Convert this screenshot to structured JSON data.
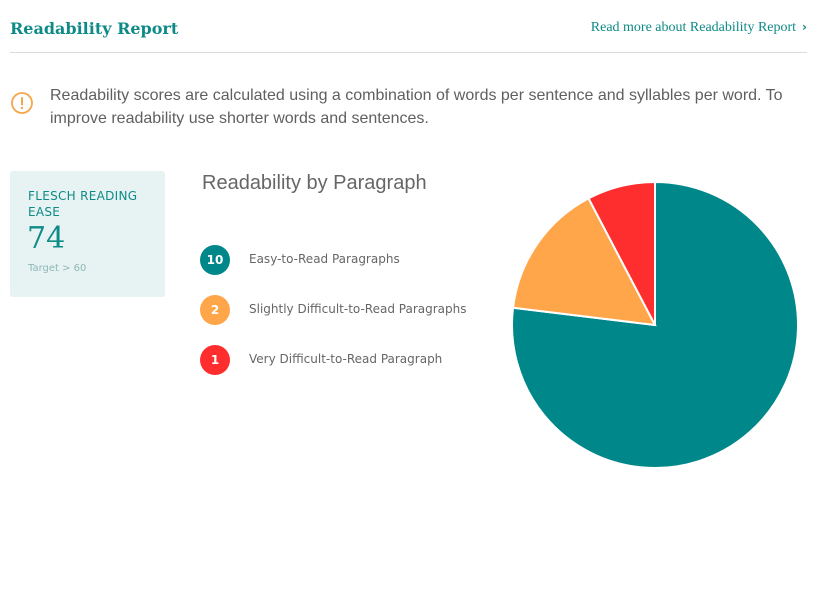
{
  "header": {
    "title": "Readability Report",
    "read_more": "Read more about Readability Report",
    "read_more_icon": "chevron-right-icon"
  },
  "notice": {
    "icon": "info-icon",
    "text": "Readability scores are calculated using a combination of words per sentence and syllables per word. To improve readability use shorter words and sentences."
  },
  "kpi": {
    "label": "FLESCH READING EASE",
    "value": "74",
    "target": "Target > 60"
  },
  "chart_data": {
    "type": "pie",
    "title": "Readability by Paragraph",
    "slices": [
      {
        "label": "Easy-to-Read Paragraphs",
        "value": 10,
        "color": "#00878a"
      },
      {
        "label": "Slightly Difficult-to-Read Paragraphs",
        "value": 2,
        "color": "#ffa64a"
      },
      {
        "label": "Very Difficult-to-Read Paragraph",
        "value": 1,
        "color": "#ff2e2e"
      }
    ],
    "legend_position": "left"
  },
  "colors": {
    "accent": "#0e8a87",
    "warning_icon": "#f5a54a"
  }
}
